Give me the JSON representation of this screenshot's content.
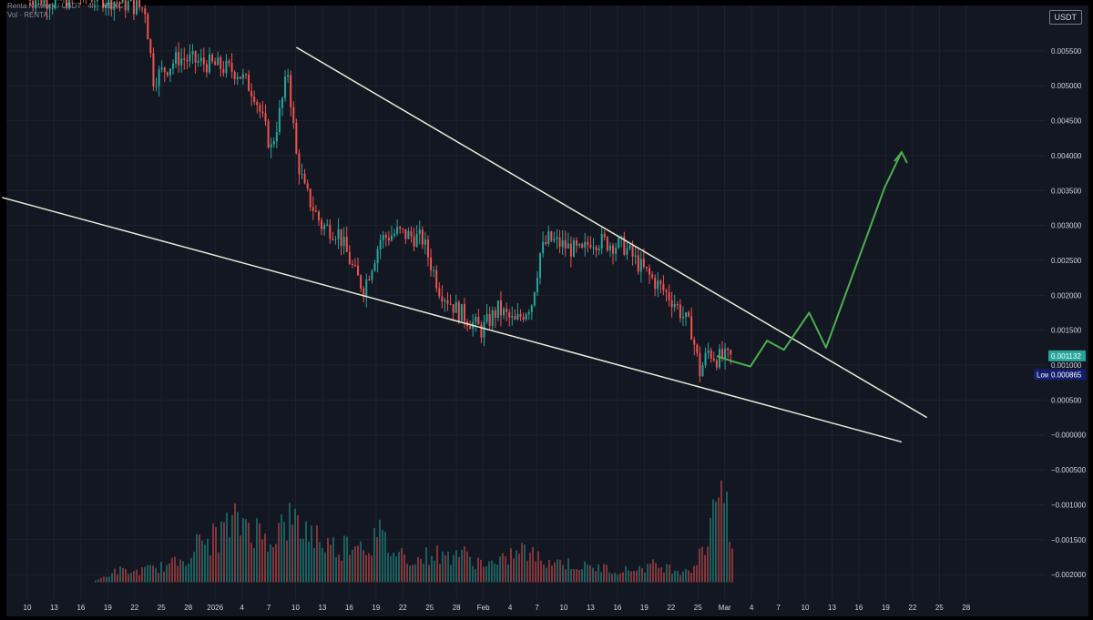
{
  "header": {
    "title": "Renta Network / USDT · 4h · MEXC",
    "volume_label": "Vol · RENTA"
  },
  "currency_button": "USDT",
  "price_labels": {
    "last": {
      "text": "0.001132",
      "color": "#26a69a"
    },
    "low": {
      "name": "Low",
      "text": "0.000865",
      "color": "#131f6e"
    }
  },
  "colors": {
    "background": "#131722",
    "up": "#26a69a",
    "down": "#ef5350",
    "trendline": "#e8ebd5",
    "projection": "#4caf50",
    "axis_text": "#d1d4dc"
  },
  "chart_data": {
    "type": "candlestick",
    "y_axis_ticks": [
      "0.005500",
      "0.005000",
      "0.004500",
      "0.004000",
      "0.003500",
      "0.003000",
      "0.002500",
      "0.002000",
      "0.001500",
      "0.001000",
      "0.000500",
      "−0.000000",
      "−0.000500",
      "−0.001000",
      "−0.001500",
      "−0.002000"
    ],
    "ylim": [
      -0.00235,
      0.00615
    ],
    "x_axis_ticks": [
      "10",
      "13",
      "16",
      "19",
      "22",
      "25",
      "28",
      "2026",
      "4",
      "7",
      "10",
      "13",
      "16",
      "19",
      "22",
      "25",
      "28",
      "Feb",
      "4",
      "7",
      "10",
      "13",
      "16",
      "19",
      "22",
      "25",
      "Mar",
      "4",
      "7",
      "10",
      "13",
      "16",
      "19",
      "22",
      "25",
      "28"
    ],
    "price_path": [
      [
        "2025-12-10",
        0.0063
      ],
      [
        "2025-12-13",
        0.0062
      ],
      [
        "2025-12-17",
        0.0063
      ],
      [
        "2025-12-21",
        0.0062
      ],
      [
        "2025-12-24",
        0.0061
      ],
      [
        "2025-12-25",
        0.0051
      ],
      [
        "2025-12-28",
        0.0054
      ],
      [
        "2026-01-01",
        0.0053
      ],
      [
        "2026-01-04",
        0.0052
      ],
      [
        "2026-01-06",
        0.0049
      ],
      [
        "2026-01-07",
        0.0045
      ],
      [
        "2026-01-08",
        0.0041
      ],
      [
        "2026-01-09",
        0.0046
      ],
      [
        "2026-01-10",
        0.0052
      ],
      [
        "2026-01-11",
        0.004
      ],
      [
        "2026-01-12",
        0.0035
      ],
      [
        "2026-01-14",
        0.003
      ],
      [
        "2026-01-16",
        0.0029
      ],
      [
        "2026-01-18",
        0.0023
      ],
      [
        "2026-01-19",
        0.0021
      ],
      [
        "2026-01-21",
        0.0028
      ],
      [
        "2026-01-23",
        0.0029
      ],
      [
        "2026-01-26",
        0.0028
      ],
      [
        "2026-01-28",
        0.0021
      ],
      [
        "2026-01-30",
        0.0018
      ],
      [
        "2026-02-01",
        0.0016
      ],
      [
        "2026-02-02",
        0.0015
      ],
      [
        "2026-02-04",
        0.0018
      ],
      [
        "2026-02-06",
        0.0016
      ],
      [
        "2026-02-08",
        0.0019
      ],
      [
        "2026-02-09",
        0.0026
      ],
      [
        "2026-02-10",
        0.0028
      ],
      [
        "2026-02-14",
        0.0026
      ],
      [
        "2026-02-15",
        0.0028
      ],
      [
        "2026-02-19",
        0.0027
      ],
      [
        "2026-02-21",
        0.0024
      ],
      [
        "2026-02-25",
        0.0019
      ],
      [
        "2026-02-27",
        0.0015
      ],
      [
        "2026-02-28",
        0.0009
      ],
      [
        "2026-03-01",
        0.0012
      ],
      [
        "2026-03-02",
        0.0011
      ],
      [
        "2026-03-04",
        0.0011
      ]
    ],
    "volume_levels": [
      0.0,
      0.0,
      0.0,
      0.0,
      0.0,
      0.0,
      0.05,
      0.1,
      0.08,
      0.1,
      0.12,
      0.14,
      0.2,
      0.3,
      0.34,
      0.42,
      0.48,
      0.5,
      0.36,
      0.4,
      0.5,
      0.44,
      0.4,
      0.3,
      0.28,
      0.36,
      0.3,
      0.38,
      0.25,
      0.22,
      0.18,
      0.24,
      0.2,
      0.26,
      0.18,
      0.16,
      0.14,
      0.22,
      0.26,
      0.2,
      0.18,
      0.16,
      0.14,
      0.12,
      0.12,
      0.1,
      0.1,
      0.12,
      0.14,
      0.12,
      0.1,
      0.12,
      0.3,
      1.0,
      0.2
    ],
    "trendlines": [
      {
        "from": [
          "2026-01-11",
          0.00555
        ],
        "to": [
          "2026-03-27",
          0.00025
        ]
      },
      {
        "from": [
          "2025-12-07",
          0.0034
        ],
        "to": [
          "2026-03-24",
          -0.0001
        ]
      }
    ],
    "projection_path": [
      [
        "2026-03-02",
        0.00113
      ],
      [
        "2026-03-04",
        0.00105
      ],
      [
        "2026-03-06",
        0.00098
      ],
      [
        "2026-03-08",
        0.00135
      ],
      [
        "2026-03-10",
        0.00122
      ],
      [
        "2026-03-13",
        0.00175
      ],
      [
        "2026-03-15",
        0.00125
      ],
      [
        "2026-03-22",
        0.00355
      ],
      [
        "2026-03-24",
        0.00405
      ]
    ],
    "projection_arrow_tip": [
      "2026-03-24",
      0.00405
    ],
    "grid": true
  }
}
